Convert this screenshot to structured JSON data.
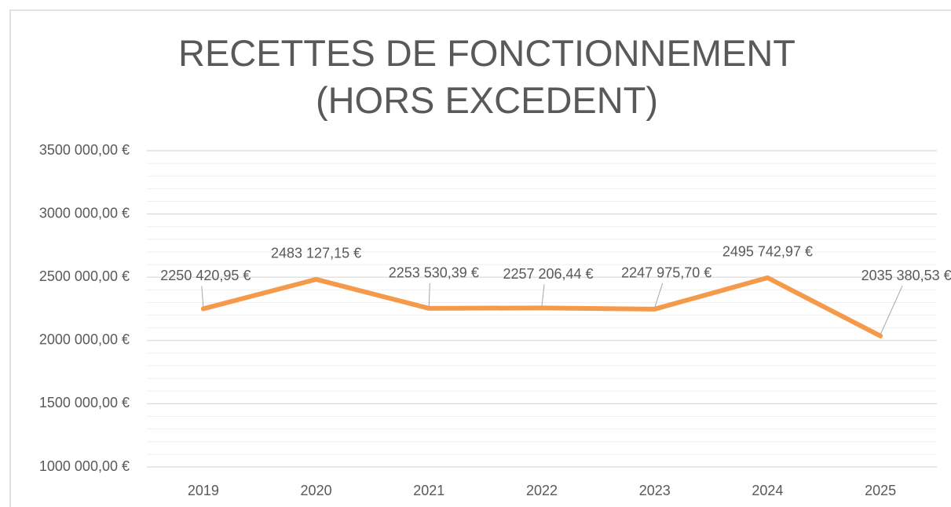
{
  "chart_data": {
    "type": "line",
    "title": "RECETTES DE FONCTIONNEMENT (HORS EXCEDENT)",
    "categories": [
      "2019",
      "2020",
      "2021",
      "2022",
      "2023",
      "2024",
      "2025"
    ],
    "series": [
      {
        "name": "Recettes de fonctionnement",
        "color": "#f59a4b",
        "values": [
          2250420.95,
          2483127.15,
          2253530.39,
          2257206.44,
          2247975.7,
          2495742.97,
          2035380.53
        ],
        "value_labels": [
          "2250 420,95 €",
          "2483 127,15 €",
          "2253 530,39 €",
          "2257 206,44 €",
          "2247 975,70 €",
          "2495 742,97 €",
          "2035 380,53 €"
        ]
      }
    ],
    "ylim": [
      1000000,
      3500000
    ],
    "yticks": [
      {
        "value": 1000000,
        "label": "1000 000,00 €"
      },
      {
        "value": 1500000,
        "label": "1500 000,00 €"
      },
      {
        "value": 2000000,
        "label": "2000 000,00 €"
      },
      {
        "value": 2500000,
        "label": "2500 000,00 €"
      },
      {
        "value": 3000000,
        "label": "3000 000,00 €"
      },
      {
        "value": 3500000,
        "label": "3500 000,00 €"
      }
    ],
    "minor_yticks": [
      1100000,
      1200000,
      1300000,
      1400000,
      1600000,
      1700000,
      1800000,
      1900000,
      2100000,
      2200000,
      2300000,
      2400000,
      2600000,
      2700000,
      2800000,
      2900000,
      3100000,
      3200000,
      3300000,
      3400000
    ],
    "grid": true,
    "minor_grid": true,
    "legend": false
  }
}
